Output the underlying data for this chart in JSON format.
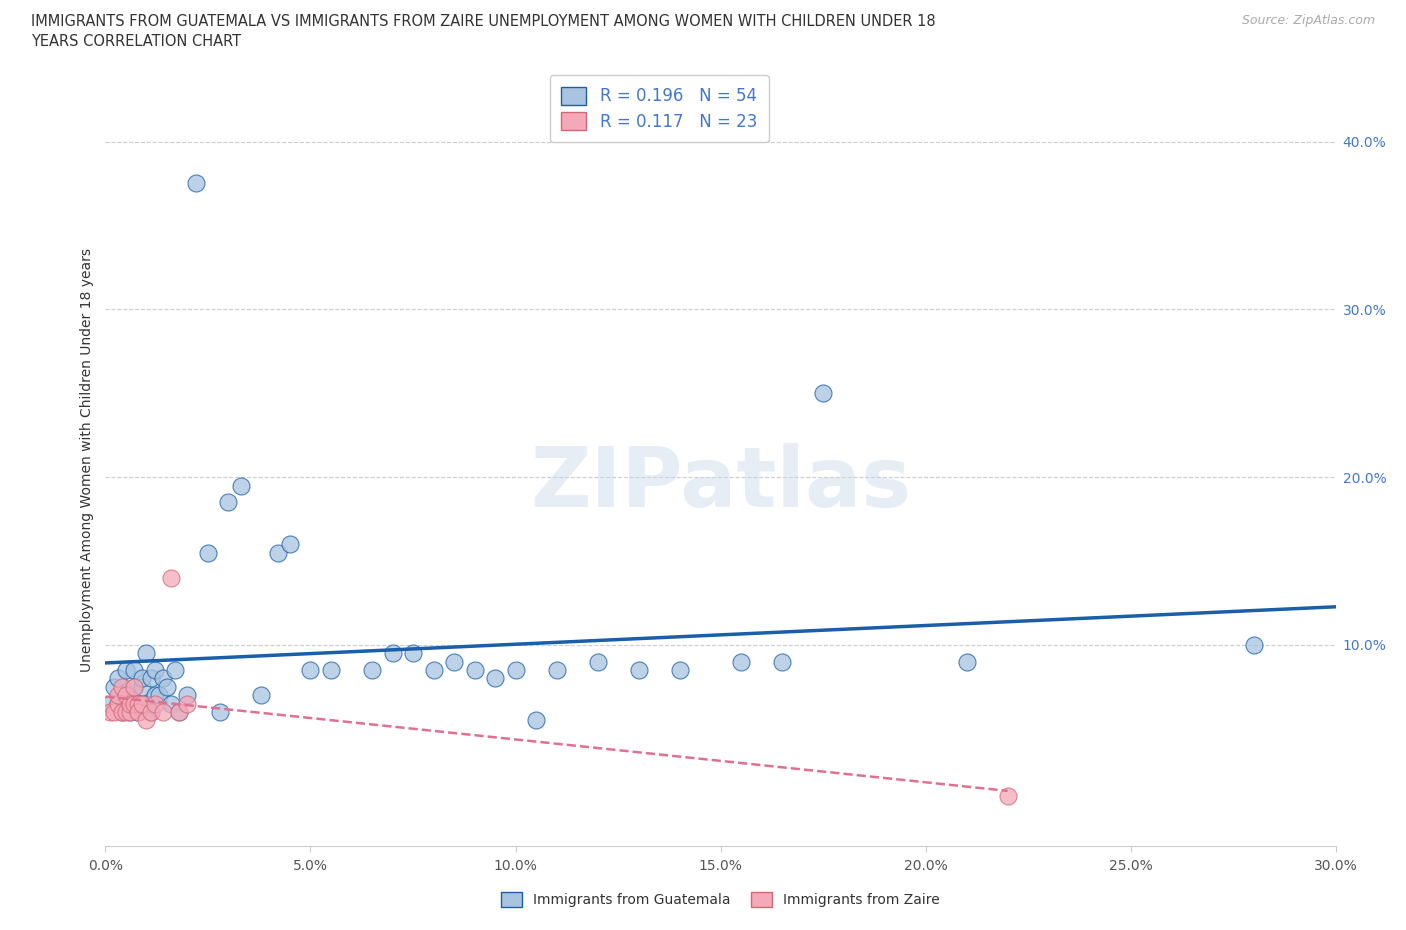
{
  "title_line1": "IMMIGRANTS FROM GUATEMALA VS IMMIGRANTS FROM ZAIRE UNEMPLOYMENT AMONG WOMEN WITH CHILDREN UNDER 18",
  "title_line2": "YEARS CORRELATION CHART",
  "source": "Source: ZipAtlas.com",
  "ylabel": "Unemployment Among Women with Children Under 18 years",
  "xlim": [
    0.0,
    0.3
  ],
  "ylim": [
    -0.02,
    0.44
  ],
  "xtick_positions": [
    0.0,
    0.05,
    0.1,
    0.15,
    0.2,
    0.25,
    0.3
  ],
  "xtick_labels": [
    "0.0%",
    "5.0%",
    "10.0%",
    "15.0%",
    "20.0%",
    "25.0%",
    "30.0%"
  ],
  "yticks_right": [
    0.1,
    0.2,
    0.3,
    0.4
  ],
  "ytick_labels_right": [
    "10.0%",
    "20.0%",
    "30.0%",
    "40.0%"
  ],
  "r_guatemala": 0.196,
  "n_guatemala": 54,
  "r_zaire": 0.117,
  "n_zaire": 23,
  "color_guatemala": "#a8c4e0",
  "color_zaire": "#f4a8b8",
  "edge_color_guatemala": "#1a5fa8",
  "edge_color_zaire": "#d06878",
  "line_color_guatemala": "#1a5fa8",
  "line_color_zaire": "#e07090",
  "guatemala_x": [
    0.001,
    0.002,
    0.003,
    0.003,
    0.004,
    0.005,
    0.005,
    0.006,
    0.007,
    0.007,
    0.008,
    0.009,
    0.009,
    0.01,
    0.01,
    0.011,
    0.011,
    0.012,
    0.012,
    0.013,
    0.014,
    0.015,
    0.016,
    0.017,
    0.018,
    0.02,
    0.022,
    0.025,
    0.028,
    0.03,
    0.033,
    0.038,
    0.042,
    0.045,
    0.05,
    0.055,
    0.065,
    0.07,
    0.075,
    0.08,
    0.085,
    0.09,
    0.095,
    0.1,
    0.105,
    0.11,
    0.12,
    0.13,
    0.14,
    0.155,
    0.165,
    0.175,
    0.21,
    0.28
  ],
  "guatemala_y": [
    0.065,
    0.075,
    0.065,
    0.08,
    0.06,
    0.07,
    0.085,
    0.06,
    0.075,
    0.085,
    0.06,
    0.075,
    0.08,
    0.065,
    0.095,
    0.06,
    0.08,
    0.07,
    0.085,
    0.07,
    0.08,
    0.075,
    0.065,
    0.085,
    0.06,
    0.07,
    0.375,
    0.155,
    0.06,
    0.185,
    0.195,
    0.07,
    0.155,
    0.16,
    0.085,
    0.085,
    0.085,
    0.095,
    0.095,
    0.085,
    0.09,
    0.085,
    0.08,
    0.085,
    0.055,
    0.085,
    0.09,
    0.085,
    0.085,
    0.09,
    0.09,
    0.25,
    0.09,
    0.1
  ],
  "zaire_x": [
    0.001,
    0.002,
    0.003,
    0.003,
    0.004,
    0.004,
    0.005,
    0.005,
    0.006,
    0.006,
    0.007,
    0.007,
    0.008,
    0.008,
    0.009,
    0.01,
    0.011,
    0.012,
    0.014,
    0.016,
    0.018,
    0.02,
    0.22
  ],
  "zaire_y": [
    0.06,
    0.06,
    0.065,
    0.07,
    0.06,
    0.075,
    0.06,
    0.07,
    0.06,
    0.065,
    0.065,
    0.075,
    0.065,
    0.06,
    0.065,
    0.055,
    0.06,
    0.065,
    0.06,
    0.14,
    0.06,
    0.065,
    0.01
  ],
  "watermark_text": "ZIPatlas",
  "legend_label_guatemala": "Immigrants from Guatemala",
  "legend_label_zaire": "Immigrants from Zaire",
  "background_color": "#ffffff",
  "grid_color": "#cccccc",
  "title_color": "#333333",
  "tick_color": "#555555",
  "right_tick_color": "#4477cc"
}
